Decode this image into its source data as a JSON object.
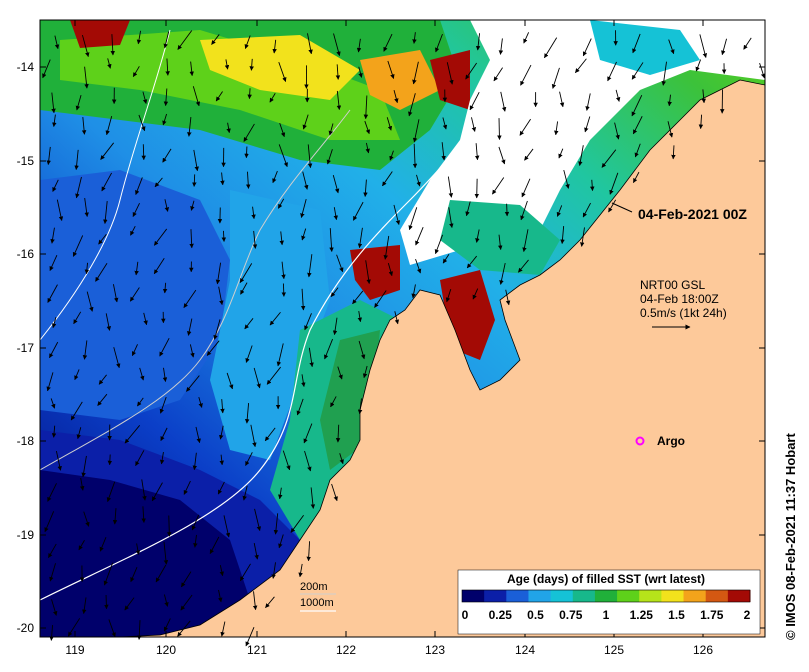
{
  "map": {
    "latitude_ticks": [
      "-14",
      "-15",
      "-16",
      "-17",
      "-18",
      "-19",
      "-20"
    ],
    "longitude_ticks": [
      "119",
      "120",
      "121",
      "122",
      "123",
      "124",
      "125",
      "126"
    ],
    "land_color": "#fdc99a",
    "no_data_color": "#ffffff"
  },
  "annotations": {
    "date_label": "04-Feb-2021 00Z",
    "current_model": "NRT00 GSL",
    "current_time": "04-Feb 18:00Z",
    "current_scale": "0.5m/s (1kt 24h)",
    "argo_label": "Argo",
    "argo_marker_color": "#ff00ff",
    "isobath_200": "200m",
    "isobath_1000": "1000m"
  },
  "colorbar": {
    "title": "Age (days) of filled SST (wrt latest)",
    "tick_labels": [
      "0",
      "0.25",
      "0.5",
      "0.75",
      "1",
      "1.25",
      "1.5",
      "1.75",
      "2"
    ],
    "colors": [
      "#00006b",
      "#0b1fa8",
      "#1a5fd8",
      "#21a4e8",
      "#15c2d6",
      "#17b88b",
      "#20b03a",
      "#5ed11a",
      "#b6e31a",
      "#f2e21c",
      "#f3a31b",
      "#d45812",
      "#a30a05"
    ]
  },
  "credit": "© IMOS 08-Feb-2021 11:37 Hobart"
}
